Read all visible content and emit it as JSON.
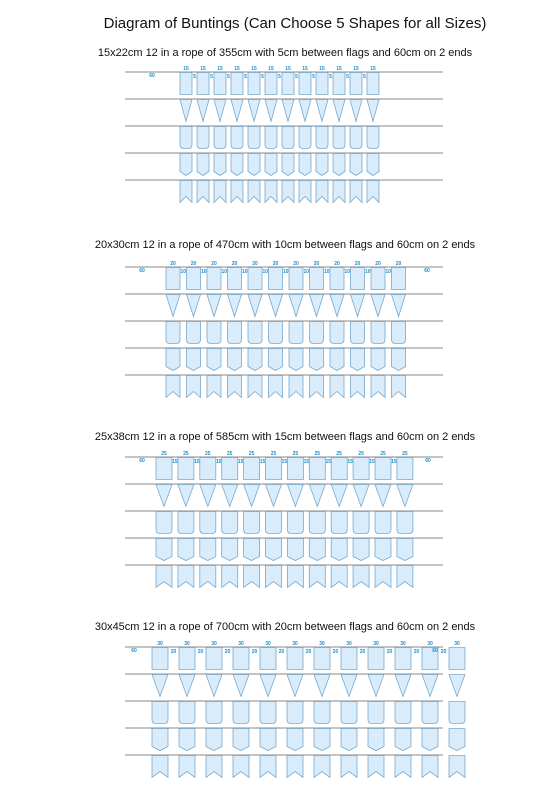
{
  "title": "Diagram of Buntings (Can Choose 5 Shapes for all Sizes)",
  "colors": {
    "flag_fill": "#d8ecfb",
    "flag_stroke": "#7aa9cc",
    "rope": "#888888",
    "dimension_text": "#1a8fd0"
  },
  "shapes": [
    "rectangle",
    "triangle",
    "rounded",
    "pointed",
    "swallowtail"
  ],
  "sections": [
    {
      "title": "15x22cm 12 in a rope of 355cm with 5cm between flags and 60cm on 2 ends",
      "flag_count": 12,
      "flag_width_label": "15",
      "gap_label": "5",
      "end_label": "60",
      "end_label_right": ""
    },
    {
      "title": "20x30cm 12 in a rope of 470cm with 10cm between flags and 60cm on 2 ends",
      "flag_count": 12,
      "flag_width_label": "20",
      "gap_label": "10",
      "end_label": "60",
      "end_label_right": "60"
    },
    {
      "title": "25x38cm 12 in a rope of 585cm with 15cm between flags and 60cm on 2 ends",
      "flag_count": 12,
      "flag_width_label": "25",
      "gap_label": "15",
      "end_label": "60",
      "end_label_right": "60"
    },
    {
      "title": "30x45cm 12 in a rope of 700cm with 20cm between flags and 60cm on 2 ends",
      "flag_count": 12,
      "flag_width_label": "30",
      "gap_label": "20",
      "end_label": "60",
      "end_label_right": "60"
    }
  ]
}
